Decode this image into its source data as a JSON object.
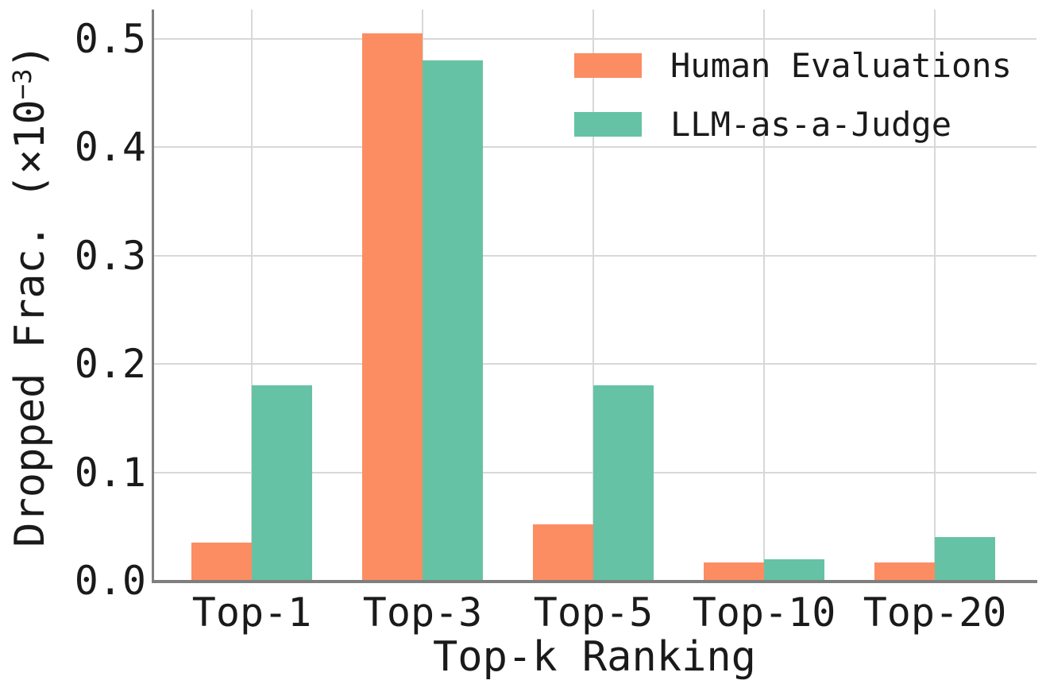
{
  "chart_data": {
    "type": "bar",
    "title": "",
    "xlabel": "Top-k Ranking",
    "ylabel": "Dropped Frac. (×10⁻³)",
    "ylabel_parts": {
      "prefix": "Dropped Frac. (×10",
      "exponent": "−3",
      "suffix": ")"
    },
    "categories": [
      "Top-1",
      "Top-3",
      "Top-5",
      "Top-10",
      "Top-20"
    ],
    "series": [
      {
        "name": "Human Evaluations",
        "color": "#FC8D62",
        "values": [
          0.035,
          0.505,
          0.052,
          0.017,
          0.017
        ]
      },
      {
        "name": "LLM-as-a-Judge",
        "color": "#66C2A5",
        "values": [
          0.18,
          0.48,
          0.18,
          0.02,
          0.04
        ]
      }
    ],
    "yticks": [
      0.0,
      0.1,
      0.2,
      0.3,
      0.4,
      0.5
    ],
    "ytick_labels": [
      "0.0",
      "0.1",
      "0.2",
      "0.3",
      "0.4",
      "0.5"
    ],
    "ylim": [
      0,
      0.53
    ],
    "grid": true,
    "legend_position": "upper right",
    "colors": {
      "grid": "#D8D8D8",
      "spine": "#7F7F7F",
      "text": "#1A1A1A",
      "background": "#FFFFFF"
    }
  }
}
